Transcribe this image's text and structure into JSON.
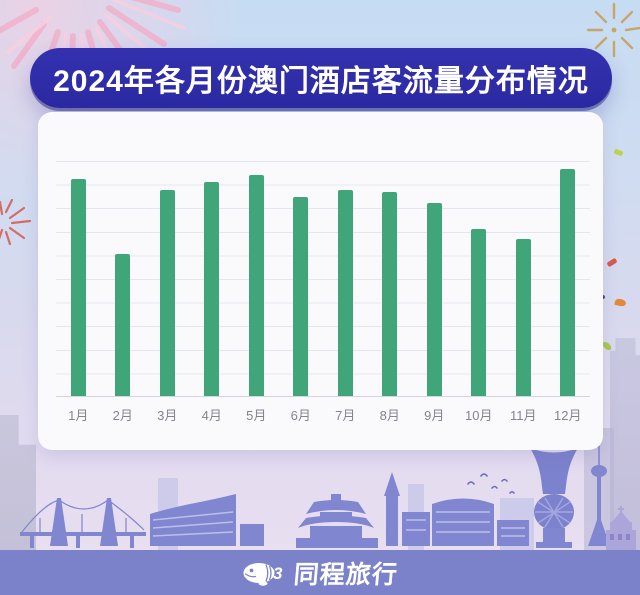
{
  "title": {
    "text": "2024年各月份澳门酒店客流量分布情况"
  },
  "chart_data": {
    "type": "bar",
    "title": "2024年各月份澳门酒店客流量分布情况",
    "categories": [
      "1月",
      "2月",
      "3月",
      "4月",
      "5月",
      "6月",
      "7月",
      "8月",
      "9月",
      "10月",
      "11月",
      "12月"
    ],
    "values": [
      92.5,
      60.5,
      87.5,
      91,
      94,
      84.5,
      87.5,
      87,
      82,
      71,
      67,
      96.5
    ],
    "unit": "relative height % (no y-axis labels shown in chart)",
    "xlabel": "",
    "ylabel": "",
    "ylim": [
      0,
      100
    ],
    "grid": true,
    "gridline_count": 11,
    "legend": "none",
    "bar_color": "#40A67A"
  },
  "footer": {
    "brand": "同程旅行"
  },
  "icons": {
    "logo": "blimp-icon",
    "decorations": [
      "fireworks-pink-icon",
      "fireworks-gold-icon",
      "fireworks-red-icon",
      "confetti",
      "macau-skyline-illustration",
      "city-buildings"
    ]
  },
  "colors": {
    "title_bar": "#2E2CA6",
    "title_text": "#FFFFFF",
    "card_bg": "#FAFAFD",
    "bar": "#40A67A",
    "gridline": "#E6E5EF",
    "axis_line": "#D5D4E0",
    "axis_label": "#84848F",
    "footer_bar": "#7B82C9",
    "skyline": "#8086CF",
    "bg_top": "#C6DCF3",
    "bg_bottom": "#E8DFF0"
  }
}
